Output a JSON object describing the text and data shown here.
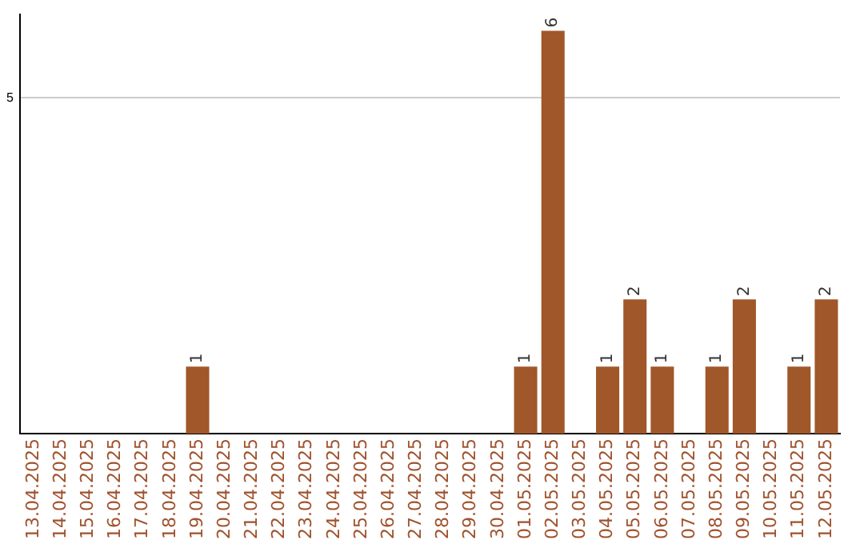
{
  "chart_data": {
    "type": "bar",
    "categories": [
      "13.04.2025",
      "14.04.2025",
      "15.04.2025",
      "16.04.2025",
      "17.04.2025",
      "18.04.2025",
      "19.04.2025",
      "20.04.2025",
      "21.04.2025",
      "22.04.2025",
      "23.04.2025",
      "24.04.2025",
      "25.04.2025",
      "26.04.2025",
      "27.04.2025",
      "28.04.2025",
      "29.04.2025",
      "30.04.2025",
      "01.05.2025",
      "02.05.2025",
      "03.05.2025",
      "04.05.2025",
      "05.05.2025",
      "06.05.2025",
      "07.05.2025",
      "08.05.2025",
      "09.05.2025",
      "10.05.2025",
      "11.05.2025",
      "12.05.2025"
    ],
    "values": [
      0,
      0,
      0,
      0,
      0,
      0,
      1,
      0,
      0,
      0,
      0,
      0,
      0,
      0,
      0,
      0,
      0,
      0,
      1,
      6,
      0,
      1,
      2,
      1,
      0,
      1,
      2,
      0,
      1,
      2
    ],
    "value_labels": [
      null,
      null,
      null,
      null,
      null,
      null,
      "1",
      null,
      null,
      null,
      null,
      null,
      null,
      null,
      null,
      null,
      null,
      null,
      "1",
      "6",
      null,
      "1",
      "2",
      "1",
      null,
      "1",
      "2",
      null,
      "1",
      "2"
    ],
    "color": "#a0572a",
    "ylim": [
      0,
      6.25
    ],
    "yticks": [
      5
    ],
    "grid": "y"
  }
}
